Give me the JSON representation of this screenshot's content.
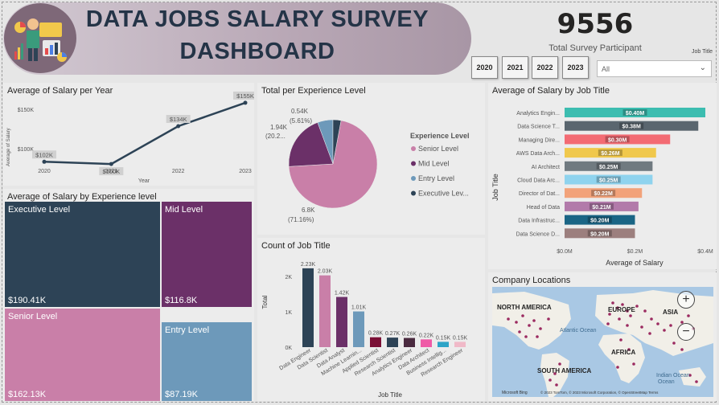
{
  "header": {
    "title_line1": "DATA JOBS SALARY SURVEY",
    "title_line2": "DASHBOARD",
    "kpi_value": "9556",
    "kpi_label": "Total Survey Participant"
  },
  "filters": {
    "years": [
      "2020",
      "2021",
      "2022",
      "2023"
    ],
    "job_title_label": "Job Title",
    "job_title_value": "All"
  },
  "colors": {
    "navy": "#2d4356",
    "purple": "#6b3068",
    "pink": "#c97fa8",
    "steel": "#6d99ba",
    "panel": "#ececec"
  },
  "salary_per_year": {
    "title": "Average of Salary per Year",
    "xlabel": "Year",
    "ylabel": "Average of Salary",
    "yticks": [
      "$100K",
      "$150K"
    ],
    "chart_data": {
      "type": "line",
      "x": [
        "2020",
        "2021",
        "2022",
        "2023"
      ],
      "values": [
        102,
        100,
        134,
        155
      ],
      "labels": [
        "$102K",
        "$100K",
        "$134K",
        "$155K"
      ],
      "ylim": [
        95,
        160
      ]
    }
  },
  "experience_pie": {
    "title": "Total per Experience Level",
    "legend_title": "Experience Level",
    "chart_data": {
      "type": "pie",
      "labels": [
        "Senior Level",
        "Mid Level",
        "Entry Level",
        "Executive Lev..."
      ],
      "values": [
        6800,
        1940,
        540,
        280
      ],
      "colors": [
        "#c97fa8",
        "#6b3068",
        "#6d99ba",
        "#2d4356"
      ]
    },
    "annotations": {
      "senior_value": "6.8K",
      "senior_pct": "(71.16%)",
      "mid_value": "1.94K",
      "mid_pct": "(20.2...",
      "entry_value": "0.54K",
      "entry_pct": "(5.61%)"
    }
  },
  "salary_by_title": {
    "title": "Average of Salary by Job Title",
    "ylabel": "Job Title",
    "xlabel": "Average of Salary",
    "xticks": [
      "$0.0M",
      "$0.2M",
      "$0.4M"
    ],
    "chart_data": {
      "type": "bar",
      "categories": [
        "Analytics Engin...",
        "Data Science T...",
        "Managing Dire...",
        "AWS Data Arch...",
        "AI Architect",
        "Cloud Data Arc...",
        "Director of Dat...",
        "Head of Data",
        "Data Infrastruc...",
        "Data Science D..."
      ],
      "values": [
        0.4,
        0.38,
        0.3,
        0.26,
        0.25,
        0.25,
        0.22,
        0.21,
        0.2,
        0.2
      ],
      "labels": [
        "$0.40M",
        "$0.38M",
        "$0.30M",
        "$0.26M",
        "$0.25M",
        "$0.25M",
        "$0.22M",
        "$0.21M",
        "$0.20M",
        "$0.20M"
      ],
      "colors": [
        "#3cbdb0",
        "#5a666f",
        "#f36b73",
        "#f0c84c",
        "#707a80",
        "#8fd3ee",
        "#f2a27a",
        "#b27aaa",
        "#1a6585",
        "#9c7f7e"
      ],
      "xlim": [
        0,
        0.4
      ]
    }
  },
  "salary_by_experience": {
    "title": "Average of Salary by Experience level",
    "chart_data": {
      "type": "treemap",
      "labels": [
        "Executive Level",
        "Mid Level",
        "Senior Level",
        "Entry Level"
      ],
      "values": [
        "$190.41K",
        "$116.8K",
        "$162.13K",
        "$87.19K"
      ],
      "colors": [
        "#2d4356",
        "#6b3068",
        "#c97fa8",
        "#6d99ba"
      ]
    }
  },
  "job_title_count": {
    "title": "Count of Job Title",
    "xlabel": "Job Title",
    "ylabel": "Total",
    "yticks": [
      "0K",
      "1K",
      "2K"
    ],
    "chart_data": {
      "type": "bar",
      "categories": [
        "Data Engineer",
        "Data Scientist",
        "Data Analyst",
        "Machine Learnin...",
        "Applied Scientist",
        "Research Scientist",
        "Analytics Engineer",
        "Data Architect",
        "Business Intellig...",
        "Research Engineer"
      ],
      "values": [
        2.23,
        2.03,
        1.42,
        1.01,
        0.28,
        0.27,
        0.26,
        0.22,
        0.15,
        0.15
      ],
      "labels": [
        "2.23K",
        "2.03K",
        "1.42K",
        "1.01K",
        "0.28K",
        "0.27K",
        "0.26K",
        "0.22K",
        "0.15K",
        "0.15K"
      ],
      "colors": [
        "#2d4356",
        "#c97fa8",
        "#6b3068",
        "#6d99ba",
        "#7a0f35",
        "#2d4356",
        "#4a2a3f",
        "#ef5ba7",
        "#2ea4c7",
        "#f0b9c8"
      ],
      "ylim": [
        0,
        2.5
      ]
    }
  },
  "map": {
    "title": "Company Locations",
    "labels": [
      "NORTH AMERICA",
      "EUROPE",
      "ASIA",
      "AFRICA",
      "SOUTH AMERICA",
      "Atlantic Ocean",
      "Indian Ocean",
      "Ocean"
    ],
    "attribution": "© 2023 TomTom, © 2023 Microsoft Corporation, © OpenStreetMap  Terms",
    "bing": "Microsoft Bing",
    "zoom_in": "+",
    "zoom_out": "−"
  }
}
